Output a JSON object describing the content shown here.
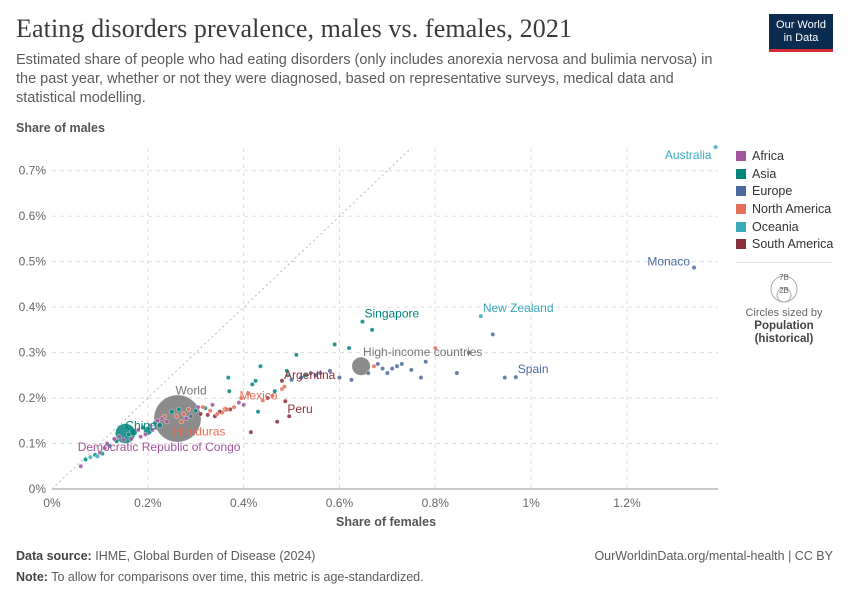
{
  "header": {
    "title": "Eating disorders prevalence, males vs. females, 2021",
    "subtitle": "Estimated share of people who had eating disorders (only includes anorexia nervosa and bulimia nervosa) in the past year, whether or not they were diagnosed, based on representative surveys, medical data and statistical modelling.",
    "logo_line1": "Our World",
    "logo_line2": "in Data"
  },
  "footer": {
    "source_label": "Data source:",
    "source_text": "IHME, Global Burden of Disease (2024)",
    "url": "OurWorldinData.org/mental-health | CC BY",
    "note_label": "Note:",
    "note_text": "To allow for comparisons over time, this metric is age-standardized."
  },
  "legend": {
    "regions": [
      {
        "name": "Africa",
        "color": "#a2559c"
      },
      {
        "name": "Asia",
        "color": "#00847e"
      },
      {
        "name": "Europe",
        "color": "#4c6a9c"
      },
      {
        "name": "North America",
        "color": "#e56e5a"
      },
      {
        "name": "Oceania",
        "color": "#38aaba"
      },
      {
        "name": "South America",
        "color": "#883039"
      }
    ],
    "size_title": "Circles sized by",
    "size_var_line1": "Population",
    "size_var_line2": "(historical)",
    "size_big": "7B",
    "size_small": "2B"
  },
  "chart_data": {
    "type": "scatter",
    "title": "Eating disorders prevalence, males vs. females, 2021",
    "xlabel": "Share of females",
    "ylabel": "Share of males",
    "xlim": [
      0,
      1.39
    ],
    "ylim": [
      0,
      0.75
    ],
    "x_ticks": [
      {
        "v": 0,
        "label": "0%"
      },
      {
        "v": 0.2,
        "label": "0.2%"
      },
      {
        "v": 0.4,
        "label": "0.4%"
      },
      {
        "v": 0.6,
        "label": "0.6%"
      },
      {
        "v": 0.8,
        "label": "0.8%"
      },
      {
        "v": 1.0,
        "label": "1%"
      },
      {
        "v": 1.2,
        "label": "1.2%"
      }
    ],
    "y_ticks": [
      {
        "v": 0,
        "label": "0%"
      },
      {
        "v": 0.1,
        "label": "0.1%"
      },
      {
        "v": 0.2,
        "label": "0.2%"
      },
      {
        "v": 0.3,
        "label": "0.3%"
      },
      {
        "v": 0.4,
        "label": "0.4%"
      },
      {
        "v": 0.5,
        "label": "0.5%"
      },
      {
        "v": 0.6,
        "label": "0.6%"
      },
      {
        "v": 0.7,
        "label": "0.7%"
      }
    ],
    "labeled_points": [
      {
        "name": "Australia",
        "x": 1.385,
        "y": 0.752,
        "region": "Oceania",
        "pop": 0.026,
        "anchor": "end",
        "dx": -4,
        "dy": 12
      },
      {
        "name": "Monaco",
        "x": 1.34,
        "y": 0.487,
        "region": "Europe",
        "pop": 4e-05,
        "anchor": "end",
        "dx": -4,
        "dy": -2
      },
      {
        "name": "New Zealand",
        "x": 0.895,
        "y": 0.38,
        "region": "Oceania",
        "pop": 0.005,
        "anchor": "start",
        "dx": 2,
        "dy": -4
      },
      {
        "name": "Singapore",
        "x": 0.648,
        "y": 0.368,
        "region": "Asia",
        "pop": 0.006,
        "anchor": "start",
        "dx": 2,
        "dy": -4
      },
      {
        "name": "High-income countries",
        "x": 0.645,
        "y": 0.27,
        "region": "Other",
        "pop": 1.2,
        "anchor": "start",
        "dx": 2,
        "dy": -10
      },
      {
        "name": "Spain",
        "x": 0.968,
        "y": 0.246,
        "region": "Europe",
        "pop": 0.047,
        "anchor": "start",
        "dx": 2,
        "dy": -4
      },
      {
        "name": "Argentina",
        "x": 0.48,
        "y": 0.238,
        "region": "South America",
        "pop": 0.045,
        "anchor": "start",
        "dx": 2,
        "dy": -2
      },
      {
        "name": "Mexico",
        "x": 0.362,
        "y": 0.175,
        "region": "North America",
        "pop": 0.126,
        "anchor": "start",
        "dx": 14,
        "dy": -10
      },
      {
        "name": "Peru",
        "x": 0.487,
        "y": 0.193,
        "region": "South America",
        "pop": 0.033,
        "anchor": "start",
        "dx": 2,
        "dy": 12
      },
      {
        "name": "World",
        "x": 0.262,
        "y": 0.155,
        "region": "Other",
        "pop": 7.9,
        "anchor": "start",
        "dx": -2,
        "dy": -24
      },
      {
        "name": "Honduras",
        "x": 0.27,
        "y": 0.148,
        "region": "North America",
        "pop": 0.01,
        "anchor": "start",
        "dx": -8,
        "dy": 14
      },
      {
        "name": "China",
        "x": 0.153,
        "y": 0.122,
        "region": "Asia",
        "pop": 1.42,
        "anchor": "start",
        "dx": 0,
        "dy": -4
      },
      {
        "name": "Democratic Republic of Congo",
        "x": 0.133,
        "y": 0.108,
        "region": "Africa",
        "pop": 0.095,
        "anchor": "start",
        "dx": -38,
        "dy": 11
      }
    ],
    "points": [
      [
        0.06,
        0.05,
        "Africa",
        0.01
      ],
      [
        0.07,
        0.065,
        "Asia",
        0.01
      ],
      [
        0.08,
        0.07,
        "Oceania",
        0.01
      ],
      [
        0.09,
        0.075,
        "Asia",
        0.02
      ],
      [
        0.095,
        0.072,
        "Oceania",
        0.01
      ],
      [
        0.1,
        0.08,
        "Africa",
        0.02
      ],
      [
        0.105,
        0.078,
        "Asia",
        0.03
      ],
      [
        0.11,
        0.09,
        "Africa",
        0.03
      ],
      [
        0.115,
        0.1,
        "Africa",
        0.04
      ],
      [
        0.12,
        0.095,
        "Asia",
        0.05
      ],
      [
        0.13,
        0.11,
        "Africa",
        0.05
      ],
      [
        0.135,
        0.105,
        "Asia",
        0.06
      ],
      [
        0.14,
        0.115,
        "Africa",
        0.04
      ],
      [
        0.15,
        0.108,
        "Africa",
        0.05
      ],
      [
        0.16,
        0.12,
        "Asia",
        0.08
      ],
      [
        0.165,
        0.11,
        "Africa",
        0.03
      ],
      [
        0.17,
        0.125,
        "Asia",
        0.2
      ],
      [
        0.18,
        0.13,
        "Africa",
        0.06
      ],
      [
        0.185,
        0.115,
        "Africa",
        0.04
      ],
      [
        0.19,
        0.135,
        "Asia",
        0.08
      ],
      [
        0.195,
        0.12,
        "Africa",
        0.05
      ],
      [
        0.2,
        0.128,
        "Asia",
        0.27
      ],
      [
        0.205,
        0.14,
        "Africa",
        0.04
      ],
      [
        0.21,
        0.13,
        "Africa",
        0.05
      ],
      [
        0.215,
        0.145,
        "Asia",
        0.05
      ],
      [
        0.22,
        0.15,
        "Africa",
        0.03
      ],
      [
        0.225,
        0.14,
        "Asia",
        0.1
      ],
      [
        0.23,
        0.155,
        "Africa",
        0.02
      ],
      [
        0.235,
        0.16,
        "North America",
        0.02
      ],
      [
        0.24,
        0.148,
        "Africa",
        0.04
      ],
      [
        0.25,
        0.17,
        "Asia",
        0.08
      ],
      [
        0.26,
        0.16,
        "North America",
        0.02
      ],
      [
        0.265,
        0.175,
        "Asia",
        0.05
      ],
      [
        0.275,
        0.165,
        "North America",
        0.01
      ],
      [
        0.28,
        0.155,
        "Africa",
        0.02
      ],
      [
        0.285,
        0.175,
        "North America",
        0.01
      ],
      [
        0.29,
        0.16,
        "Europe",
        0.01
      ],
      [
        0.3,
        0.172,
        "Asia",
        0.03
      ],
      [
        0.305,
        0.18,
        "Africa",
        0.02
      ],
      [
        0.31,
        0.165,
        "South America",
        0.02
      ],
      [
        0.315,
        0.18,
        "North America",
        0.01
      ],
      [
        0.32,
        0.178,
        "Asia",
        0.02
      ],
      [
        0.325,
        0.163,
        "South America",
        0.01
      ],
      [
        0.33,
        0.172,
        "North America",
        0.01
      ],
      [
        0.335,
        0.185,
        "Africa",
        0.01
      ],
      [
        0.34,
        0.16,
        "South America",
        0.005
      ],
      [
        0.345,
        0.165,
        "North America",
        0.005
      ],
      [
        0.35,
        0.17,
        "South America",
        0.01
      ],
      [
        0.355,
        0.168,
        "North America",
        0.02
      ],
      [
        0.365,
        0.175,
        "North America",
        0.01
      ],
      [
        0.368,
        0.245,
        "Asia",
        0.01
      ],
      [
        0.37,
        0.215,
        "Asia",
        0.01
      ],
      [
        0.372,
        0.175,
        "South America",
        0.02
      ],
      [
        0.38,
        0.18,
        "North America",
        0.005
      ],
      [
        0.39,
        0.19,
        "Africa",
        0.005
      ],
      [
        0.395,
        0.2,
        "North America",
        0.005
      ],
      [
        0.4,
        0.185,
        "Africa",
        0.005
      ],
      [
        0.41,
        0.21,
        "North America",
        0.005
      ],
      [
        0.415,
        0.125,
        "South America",
        0.01
      ],
      [
        0.418,
        0.23,
        "Asia",
        0.01
      ],
      [
        0.425,
        0.238,
        "Asia",
        0.01
      ],
      [
        0.43,
        0.17,
        "Asia",
        0.01
      ],
      [
        0.435,
        0.27,
        "Asia",
        0.01
      ],
      [
        0.44,
        0.195,
        "North America",
        0.005
      ],
      [
        0.45,
        0.2,
        "South America",
        0.01
      ],
      [
        0.46,
        0.205,
        "North America",
        0.005
      ],
      [
        0.465,
        0.215,
        "Asia",
        0.02
      ],
      [
        0.47,
        0.148,
        "South America",
        0.02
      ],
      [
        0.48,
        0.22,
        "North America",
        0.005
      ],
      [
        0.485,
        0.225,
        "North America",
        0.005
      ],
      [
        0.49,
        0.26,
        "Asia",
        0.01
      ],
      [
        0.492,
        0.25,
        "Oceania",
        0.005
      ],
      [
        0.495,
        0.16,
        "South America",
        0.03
      ],
      [
        0.5,
        0.24,
        "Europe",
        0.005
      ],
      [
        0.51,
        0.295,
        "Asia",
        0.01
      ],
      [
        0.52,
        0.245,
        "Europe",
        0.005
      ],
      [
        0.53,
        0.25,
        "Asia",
        0.005
      ],
      [
        0.54,
        0.255,
        "Europe",
        0.005
      ],
      [
        0.55,
        0.25,
        "Europe",
        0.005
      ],
      [
        0.56,
        0.255,
        "Europe",
        0.01
      ],
      [
        0.58,
        0.26,
        "Europe",
        0.005
      ],
      [
        0.59,
        0.318,
        "Asia",
        0.01
      ],
      [
        0.6,
        0.245,
        "Europe",
        0.01
      ],
      [
        0.62,
        0.31,
        "Asia",
        0.01
      ],
      [
        0.625,
        0.24,
        "Europe",
        0.01
      ],
      [
        0.66,
        0.255,
        "Europe",
        0.01
      ],
      [
        0.668,
        0.35,
        "Asia",
        0.01
      ],
      [
        0.672,
        0.27,
        "North America",
        0.005
      ],
      [
        0.68,
        0.275,
        "Europe",
        0.01
      ],
      [
        0.69,
        0.265,
        "Europe",
        0.01
      ],
      [
        0.7,
        0.255,
        "Europe",
        0.01
      ],
      [
        0.71,
        0.265,
        "Europe",
        0.01
      ],
      [
        0.72,
        0.27,
        "Europe",
        0.005
      ],
      [
        0.73,
        0.275,
        "Europe",
        0.01
      ],
      [
        0.75,
        0.262,
        "Europe",
        0.01
      ],
      [
        0.77,
        0.245,
        "Europe",
        0.01
      ],
      [
        0.78,
        0.28,
        "Europe",
        0.01
      ],
      [
        0.8,
        0.31,
        "North America",
        0.005
      ],
      [
        0.845,
        0.255,
        "Europe",
        0.01
      ],
      [
        0.87,
        0.3,
        "Europe",
        0.005
      ],
      [
        0.92,
        0.34,
        "Europe",
        0.005
      ],
      [
        0.945,
        0.245,
        "Europe",
        0.01
      ]
    ]
  }
}
